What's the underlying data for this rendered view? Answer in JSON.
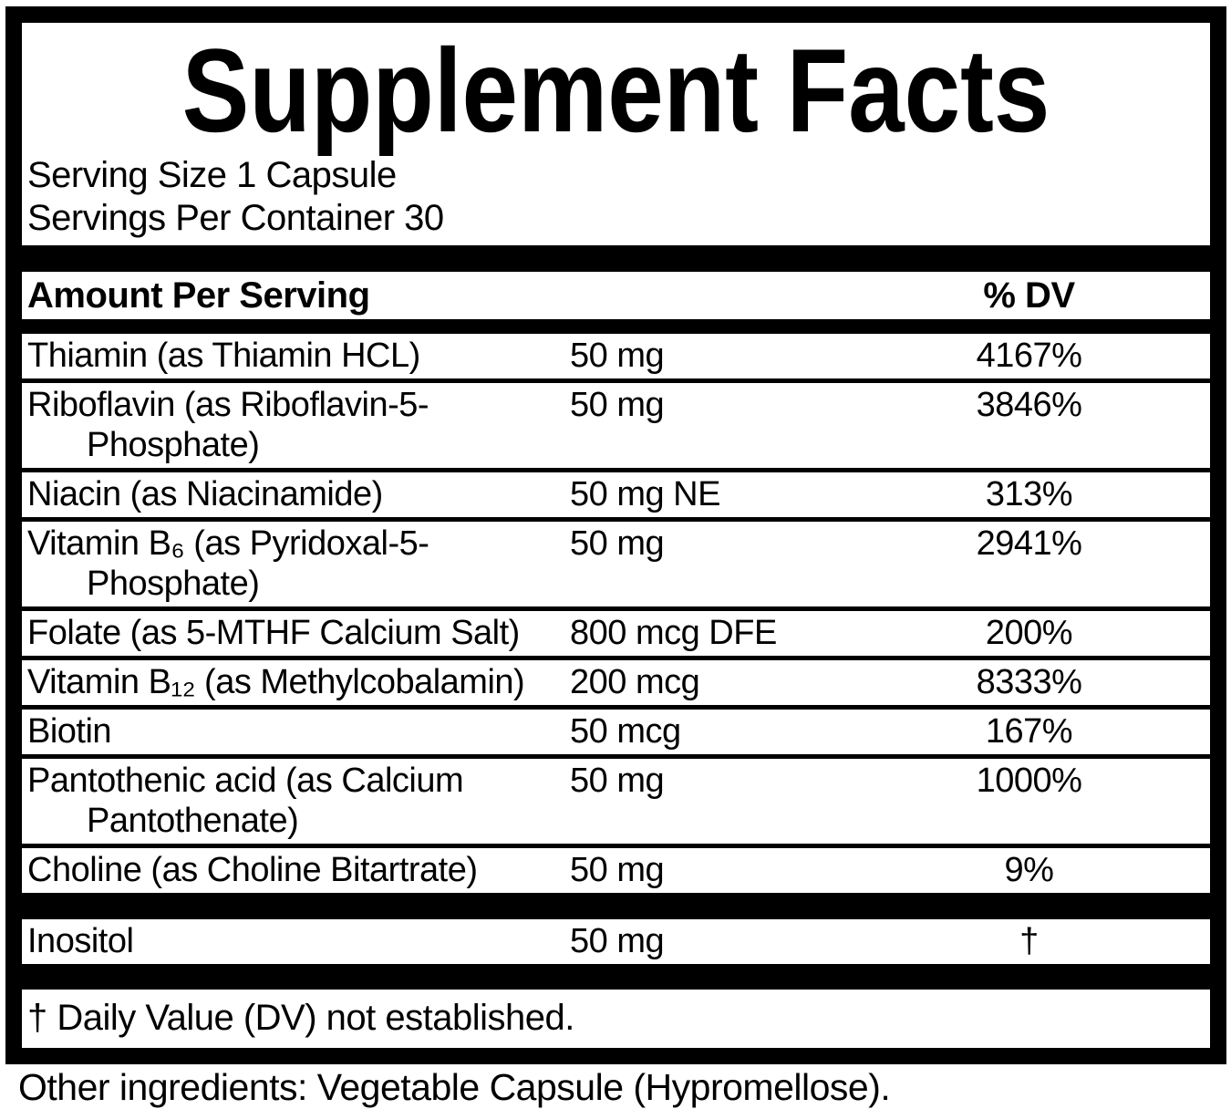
{
  "title": "Supplement Facts",
  "serving": {
    "size": "Serving Size 1 Capsule",
    "per_container": "Servings Per Container 30"
  },
  "table": {
    "header": {
      "amount_label": "Amount Per Serving",
      "dv_label": "% DV"
    },
    "rows": [
      {
        "name": "Thiamin (as Thiamin HCL)",
        "amount": "50 mg",
        "dv": "4167%"
      },
      {
        "name": "Riboflavin (as Riboflavin-5-Phosphate)",
        "amount": "50 mg",
        "dv": "3846%"
      },
      {
        "name": "Niacin (as Niacinamide)",
        "amount": "50 mg NE",
        "dv": "313%"
      },
      {
        "name": "Vitamin B₆ (as Pyridoxal-5-Phosphate)",
        "amount": "50 mg",
        "dv": "2941%"
      },
      {
        "name": "Folate (as 5-MTHF Calcium Salt)",
        "amount": "800 mcg DFE",
        "dv": "200%"
      },
      {
        "name": "Vitamin B₁₂ (as Methylcobalamin)",
        "amount": "200 mcg",
        "dv": "8333%"
      },
      {
        "name": "Biotin",
        "amount": "50 mcg",
        "dv": "167%"
      },
      {
        "name": "Pantothenic acid (as Calcium Pantothenate)",
        "amount": "50 mg",
        "dv": "1000%"
      },
      {
        "name": "Choline (as Choline Bitartrate)",
        "amount": "50 mg",
        "dv": "9%"
      }
    ],
    "no_dv_rows": [
      {
        "name": "Inositol",
        "amount": "50 mg",
        "dv": "†"
      }
    ],
    "footnote": "† Daily Value (DV) not established."
  },
  "other_ingredients": "Other ingredients: Vegetable Capsule (Hypromellose).",
  "colors": {
    "ink": "#000000",
    "background": "#ffffff"
  }
}
